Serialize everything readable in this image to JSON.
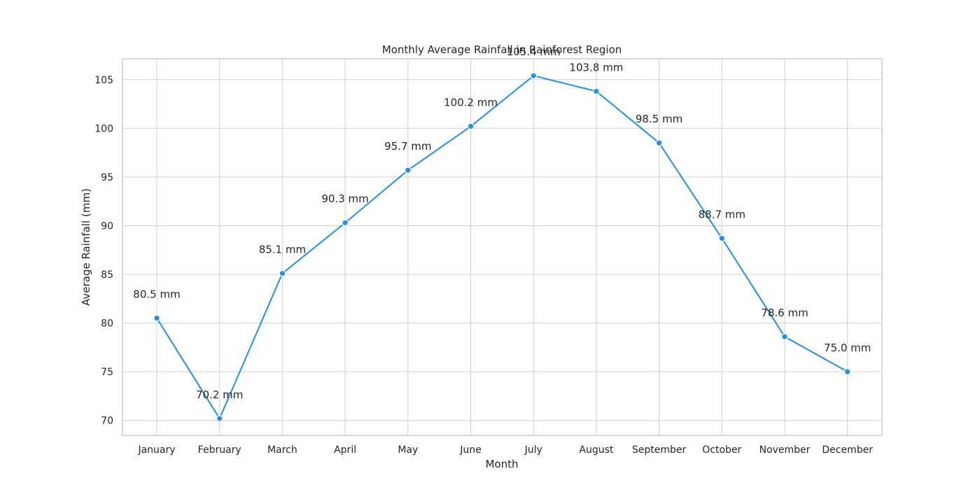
{
  "chart_data": {
    "type": "line",
    "title": "Monthly Average Rainfall in Rainforest Region",
    "xlabel": "Month",
    "ylabel": "Average Rainfall (mm)",
    "categories": [
      "January",
      "February",
      "March",
      "April",
      "May",
      "June",
      "July",
      "August",
      "September",
      "October",
      "November",
      "December"
    ],
    "series": [
      {
        "values": [
          80.5,
          70.2,
          85.1,
          90.3,
          95.7,
          100.2,
          105.4,
          103.8,
          98.5,
          88.7,
          78.6,
          75.0
        ],
        "color": "#1f8ff0"
      }
    ],
    "data_labels": [
      "80.5 mm",
      "70.2 mm",
      "85.1 mm",
      "90.3 mm",
      "95.7 mm",
      "100.2 mm",
      "105.4 mm",
      "103.8 mm",
      "98.5 mm",
      "88.7 mm",
      "78.6 mm",
      "75.0 mm"
    ],
    "yticks": [
      70,
      75,
      80,
      85,
      90,
      95,
      100,
      105
    ],
    "ylim": [
      68.46,
      107.14
    ],
    "grid": true,
    "legend": "none"
  }
}
